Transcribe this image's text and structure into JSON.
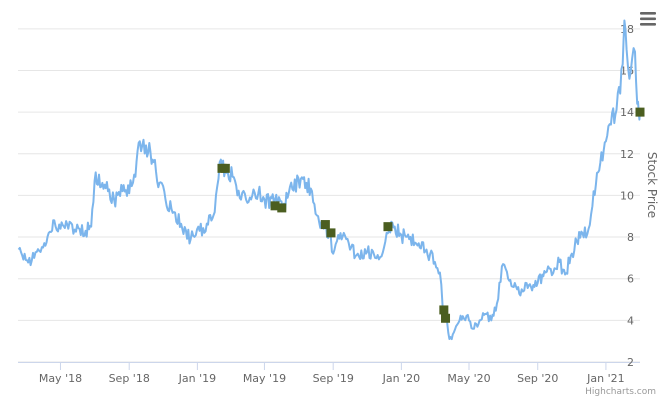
{
  "chart_data": {
    "type": "line",
    "title": "",
    "xlabel": "",
    "ylabel": "Stock Price",
    "ylim": [
      2,
      19
    ],
    "y_ticks": [
      2,
      4,
      6,
      8,
      10,
      12,
      14,
      16,
      18
    ],
    "x_tick_labels": [
      "May '18",
      "Sep '18",
      "Jan '19",
      "May '19",
      "Sep '19",
      "Jan '20",
      "May '20",
      "Sep '20",
      "Jan '21"
    ],
    "x_range": [
      "2018-02-14",
      "2021-03-03"
    ],
    "grid": true,
    "legend": "none",
    "series": [
      {
        "color": "#7cb5ec",
        "points": [
          [
            "2018-02-15",
            7.4
          ],
          [
            "2018-02-28",
            6.9
          ],
          [
            "2018-03-15",
            7.0
          ],
          [
            "2018-03-31",
            7.5
          ],
          [
            "2018-04-10",
            8.2
          ],
          [
            "2018-04-20",
            8.8
          ],
          [
            "2018-05-01",
            8.4
          ],
          [
            "2018-05-15",
            8.4
          ],
          [
            "2018-05-31",
            8.6
          ],
          [
            "2018-06-15",
            8.3
          ],
          [
            "2018-06-25",
            8.5
          ],
          [
            "2018-07-01",
            10.7
          ],
          [
            "2018-07-15",
            10.6
          ],
          [
            "2018-07-25",
            10.2
          ],
          [
            "2018-08-05",
            9.8
          ],
          [
            "2018-08-20",
            10.2
          ],
          [
            "2018-09-01",
            10.1
          ],
          [
            "2018-09-10",
            11.0
          ],
          [
            "2018-09-20",
            12.6
          ],
          [
            "2018-10-01",
            12.4
          ],
          [
            "2018-10-15",
            11.6
          ],
          [
            "2018-10-25",
            10.6
          ],
          [
            "2018-11-05",
            9.8
          ],
          [
            "2018-11-20",
            9.2
          ],
          [
            "2018-12-05",
            8.4
          ],
          [
            "2018-12-20",
            7.9
          ],
          [
            "2019-01-05",
            8.3
          ],
          [
            "2019-01-20",
            8.6
          ],
          [
            "2019-02-01",
            9.2
          ],
          [
            "2019-02-10",
            11.6
          ],
          [
            "2019-02-20",
            11.2
          ],
          [
            "2019-03-05",
            10.9
          ],
          [
            "2019-03-20",
            9.8
          ],
          [
            "2019-04-05",
            9.9
          ],
          [
            "2019-04-20",
            10.1
          ],
          [
            "2019-05-01",
            9.8
          ],
          [
            "2019-05-20",
            9.8
          ],
          [
            "2019-06-05",
            9.6
          ],
          [
            "2019-06-20",
            10.3
          ],
          [
            "2019-07-05",
            10.8
          ],
          [
            "2019-07-15",
            10.6
          ],
          [
            "2019-07-25",
            10.2
          ],
          [
            "2019-08-05",
            9.0
          ],
          [
            "2019-08-15",
            8.4
          ],
          [
            "2019-08-25",
            8.2
          ],
          [
            "2019-09-01",
            7.2
          ],
          [
            "2019-09-10",
            8.1
          ],
          [
            "2019-09-20",
            8.2
          ],
          [
            "2019-10-01",
            7.4
          ],
          [
            "2019-10-15",
            7.2
          ],
          [
            "2019-11-01",
            7.3
          ],
          [
            "2019-11-15",
            7.0
          ],
          [
            "2019-12-01",
            7.5
          ],
          [
            "2019-12-10",
            8.3
          ],
          [
            "2019-12-20",
            8.5
          ],
          [
            "2020-01-01",
            8.1
          ],
          [
            "2020-01-15",
            7.9
          ],
          [
            "2020-02-01",
            7.7
          ],
          [
            "2020-02-15",
            7.4
          ],
          [
            "2020-03-01",
            6.8
          ],
          [
            "2020-03-10",
            6.3
          ],
          [
            "2020-03-15",
            4.6
          ],
          [
            "2020-03-20",
            4.2
          ],
          [
            "2020-03-25",
            3.4
          ],
          [
            "2020-03-31",
            3.1
          ],
          [
            "2020-04-10",
            3.8
          ],
          [
            "2020-04-20",
            4.2
          ],
          [
            "2020-05-01",
            4.0
          ],
          [
            "2020-05-10",
            3.6
          ],
          [
            "2020-05-20",
            4.0
          ],
          [
            "2020-06-01",
            4.3
          ],
          [
            "2020-06-10",
            4.0
          ],
          [
            "2020-06-20",
            4.8
          ],
          [
            "2020-07-01",
            6.7
          ],
          [
            "2020-07-10",
            6.0
          ],
          [
            "2020-07-20",
            5.6
          ],
          [
            "2020-08-01",
            5.2
          ],
          [
            "2020-08-10",
            5.8
          ],
          [
            "2020-08-20",
            5.6
          ],
          [
            "2020-09-01",
            5.8
          ],
          [
            "2020-09-15",
            6.3
          ],
          [
            "2020-10-01",
            6.5
          ],
          [
            "2020-10-10",
            6.8
          ],
          [
            "2020-10-20",
            6.2
          ],
          [
            "2020-11-01",
            7.2
          ],
          [
            "2020-11-10",
            7.8
          ],
          [
            "2020-11-20",
            8.2
          ],
          [
            "2020-12-01",
            8.4
          ],
          [
            "2020-12-10",
            10.2
          ],
          [
            "2020-12-20",
            11.2
          ],
          [
            "2021-01-01",
            12.6
          ],
          [
            "2021-01-10",
            13.4
          ],
          [
            "2021-01-20",
            14.1
          ],
          [
            "2021-01-31",
            16.3
          ],
          [
            "2021-02-03",
            18.4
          ],
          [
            "2021-02-07",
            17.0
          ],
          [
            "2021-02-12",
            15.6
          ],
          [
            "2021-02-17",
            16.6
          ],
          [
            "2021-02-22",
            16.9
          ],
          [
            "2021-02-26",
            14.4
          ],
          [
            "2021-03-01",
            13.9
          ],
          [
            "2021-03-03",
            14.1
          ]
        ]
      },
      {
        "type": "markers",
        "color": "#4b5e20",
        "points": [
          [
            "2019-02-14",
            11.3
          ],
          [
            "2019-02-20",
            11.3
          ],
          [
            "2019-05-20",
            9.5
          ],
          [
            "2019-06-01",
            9.4
          ],
          [
            "2019-08-18",
            8.6
          ],
          [
            "2019-08-28",
            8.2
          ],
          [
            "2019-12-08",
            8.5
          ],
          [
            "2020-03-17",
            4.5
          ],
          [
            "2020-03-20",
            4.1
          ],
          [
            "2021-03-03",
            14.0
          ]
        ]
      }
    ]
  },
  "ui": {
    "menu_icon": "hamburger-menu-icon",
    "credits": "Highcharts.com"
  }
}
